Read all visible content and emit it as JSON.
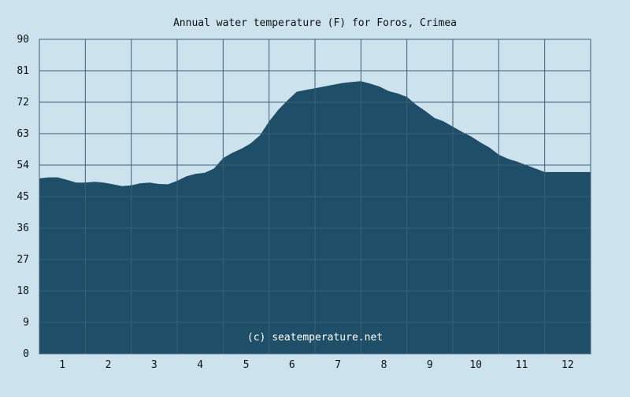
{
  "chart_data": {
    "type": "area",
    "title": "Annual water temperature (F) for Foros, Crimea",
    "xlabel": "",
    "ylabel": "",
    "watermark": "(c) seatemperature.net",
    "x_tick_labels": [
      "1",
      "2",
      "3",
      "4",
      "5",
      "6",
      "7",
      "8",
      "9",
      "10",
      "11",
      "12"
    ],
    "y_tick_labels": [
      "0",
      "9",
      "18",
      "27",
      "36",
      "45",
      "54",
      "63",
      "72",
      "81",
      "90"
    ],
    "ylim": [
      0,
      90
    ],
    "xlim": [
      0,
      12
    ],
    "grid": true,
    "legend": "none",
    "colors": {
      "background": "#cce3ee",
      "plot_background": "#cce3ee",
      "fill": "#1f4e69",
      "grid": "#3f5f78",
      "watermark": "#ffffff"
    },
    "series": [
      {
        "x": [
          0.0,
          0.2,
          0.4,
          0.6,
          0.8,
          1.0,
          1.2,
          1.4,
          1.6,
          1.8,
          2.0,
          2.2,
          2.4,
          2.6,
          2.8,
          3.0,
          3.2,
          3.4,
          3.6,
          3.8,
          4.0,
          4.2,
          4.4,
          4.6,
          4.8,
          5.0,
          5.2,
          5.4,
          5.6,
          5.8,
          6.0,
          6.2,
          6.4,
          6.6,
          6.8,
          7.0,
          7.2,
          7.4,
          7.6,
          7.8,
          8.0,
          8.2,
          8.4,
          8.6,
          8.8,
          9.0,
          9.2,
          9.4,
          9.6,
          9.8,
          10.0,
          10.2,
          10.4,
          10.6,
          10.8,
          11.0,
          11.2,
          11.4,
          11.6,
          11.8,
          12.0
        ],
        "values": [
          50.2,
          50.5,
          50.5,
          49.8,
          49.0,
          49.0,
          49.2,
          49.0,
          48.5,
          48.0,
          48.2,
          48.8,
          49.0,
          48.6,
          48.5,
          49.5,
          50.8,
          51.5,
          51.8,
          53.0,
          56.0,
          57.5,
          58.7,
          60.2,
          62.5,
          66.5,
          69.8,
          72.5,
          75.0,
          75.5,
          76.0,
          76.5,
          77.0,
          77.5,
          77.8,
          78.0,
          77.3,
          76.5,
          75.2,
          74.5,
          73.5,
          71.3,
          69.5,
          67.5,
          66.5,
          65.0,
          63.5,
          62.2,
          60.5,
          59.0,
          57.0,
          55.8,
          55.0,
          54.0,
          53.0,
          52.0,
          52.0,
          52.0,
          52.0,
          52.0,
          52.0
        ]
      }
    ]
  }
}
